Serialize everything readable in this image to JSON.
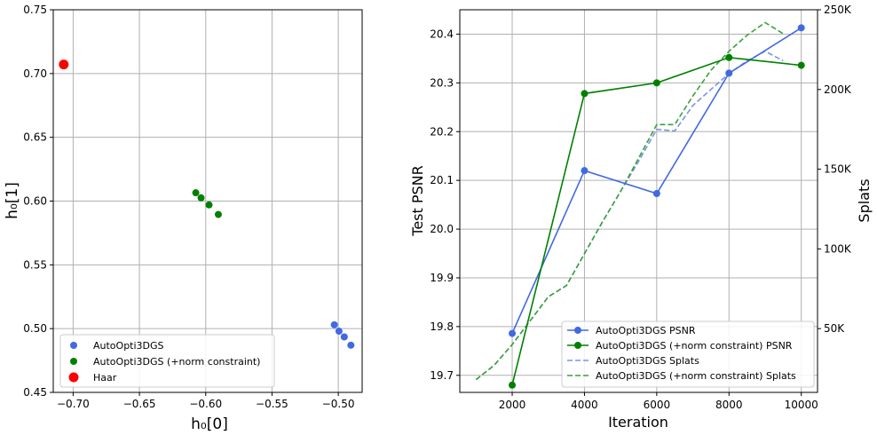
{
  "colors": {
    "blue": "#4169e1",
    "green": "#008000",
    "green_dashed": "#3aa13a",
    "blue_dashed": "#7b93e6",
    "red": "#ff0000",
    "grid": "#b0b0b0"
  },
  "chart_data": [
    {
      "type": "scatter",
      "xlabel": "h₀[0]",
      "ylabel": "h₀[1]",
      "xlim": [
        -0.715,
        -0.482
      ],
      "ylim": [
        0.45,
        0.75
      ],
      "xticks": [
        -0.7,
        -0.65,
        -0.6,
        -0.55,
        -0.5
      ],
      "xtick_labels": [
        "−0.70",
        "−0.65",
        "−0.60",
        "−0.55",
        "−0.50"
      ],
      "yticks": [
        0.45,
        0.5,
        0.55,
        0.6,
        0.65,
        0.7,
        0.75
      ],
      "ytick_labels": [
        "0.45",
        "0.50",
        "0.55",
        "0.60",
        "0.65",
        "0.70",
        "0.75"
      ],
      "grid": true,
      "legend_position": "bottom-left",
      "series": [
        {
          "name": "AutoOpti3DGS",
          "color": "#4169e1",
          "size": "small",
          "points": [
            [
              -0.503,
              0.503
            ],
            [
              -0.4995,
              0.498
            ],
            [
              -0.4955,
              0.4935
            ],
            [
              -0.4905,
              0.487
            ]
          ]
        },
        {
          "name": "AutoOpti3DGS (+norm constraint)",
          "color": "#008000",
          "size": "small",
          "points": [
            [
              -0.6075,
              0.6065
            ],
            [
              -0.6035,
              0.6025
            ],
            [
              -0.5975,
              0.597
            ],
            [
              -0.5905,
              0.5895
            ]
          ]
        },
        {
          "name": "Haar",
          "color": "#ff0000",
          "size": "large",
          "points": [
            [
              -0.7071,
              0.7071
            ]
          ]
        }
      ]
    },
    {
      "type": "line",
      "xlabel": "Iteration",
      "ylabel": "Test PSNR",
      "y2label": "Splats",
      "xlim": [
        550,
        10450
      ],
      "ylim": [
        19.665,
        20.45
      ],
      "y2lim": [
        10000,
        250000
      ],
      "xticks": [
        2000,
        4000,
        6000,
        8000,
        10000
      ],
      "xtick_labels": [
        "2000",
        "4000",
        "6000",
        "8000",
        "10000"
      ],
      "yticks": [
        19.7,
        19.8,
        19.9,
        20.0,
        20.1,
        20.2,
        20.3,
        20.4
      ],
      "ytick_labels": [
        "19.7",
        "19.8",
        "19.9",
        "20.0",
        "20.1",
        "20.2",
        "20.3",
        "20.4"
      ],
      "y2ticks": [
        50000,
        100000,
        150000,
        200000,
        250000
      ],
      "y2tick_labels": [
        "50K",
        "100K",
        "150K",
        "200K",
        "250K"
      ],
      "grid": true,
      "legend_position": "bottom-right",
      "series": [
        {
          "name": "AutoOpti3DGS PSNR",
          "axis": "left",
          "style": "solid-marker",
          "color": "#4169e1",
          "x": [
            2000,
            4000,
            6000,
            8000,
            10000
          ],
          "y": [
            19.786,
            20.12,
            20.073,
            20.32,
            20.413
          ]
        },
        {
          "name": "AutoOpti3DGS (+norm constraint) PSNR",
          "axis": "left",
          "style": "solid-marker",
          "color": "#008000",
          "x": [
            2000,
            4000,
            6000,
            8000,
            10000
          ],
          "y": [
            19.68,
            20.278,
            20.3,
            20.352,
            20.336
          ]
        },
        {
          "name": "AutoOpti3DGS Splats",
          "axis": "right",
          "style": "dashed",
          "color": "#7b93e6",
          "x": [
            1000,
            1500,
            2000,
            2500,
            3000,
            3500,
            4000,
            4500,
            5000,
            5500,
            6000,
            6500,
            7000,
            7500,
            8000,
            8500,
            9000,
            9500
          ],
          "y": [
            18000,
            27000,
            40000,
            55000,
            70000,
            77000,
            97000,
            117000,
            136000,
            155000,
            175000,
            174000,
            190000,
            200000,
            210000,
            218000,
            224000,
            218000
          ]
        },
        {
          "name": "AutoOpti3DGS (+norm constraint) Splats",
          "axis": "right",
          "style": "dashed",
          "color": "#3aa13a",
          "x": [
            1000,
            1500,
            2000,
            2500,
            3000,
            3500,
            4000,
            4500,
            5000,
            5500,
            6000,
            6500,
            7000,
            7500,
            8000,
            8500,
            9000,
            9500
          ],
          "y": [
            18000,
            27000,
            40000,
            55000,
            70000,
            77000,
            97000,
            117000,
            136000,
            157000,
            178000,
            178000,
            196000,
            212000,
            224000,
            234000,
            242000,
            235000
          ]
        }
      ]
    }
  ]
}
